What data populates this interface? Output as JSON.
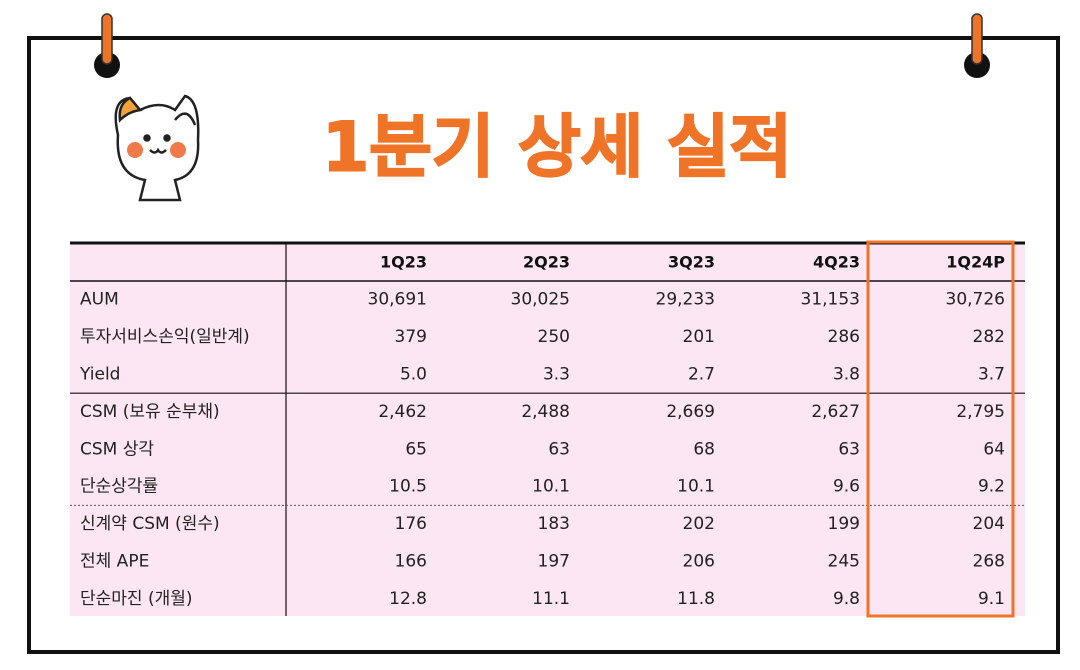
{
  "title": "1분기 상세 실적",
  "table": {
    "header": [
      "1Q23",
      "2Q23",
      "3Q23",
      "4Q23",
      "1Q24P"
    ],
    "rows": [
      [
        "AUM",
        "30,691",
        "30,025",
        "29,233",
        "31,153",
        "30,726"
      ],
      [
        "투자서비스손익(일반계)",
        "379",
        "250",
        "201",
        "286",
        "282"
      ],
      [
        "Yield",
        "5.0",
        "3.3",
        "2.7",
        "3.8",
        "3.7"
      ],
      [
        "CSM (보유 순부채)",
        "2,462",
        "2,488",
        "2,669",
        "2,627",
        "2,795"
      ],
      [
        "CSM 상각",
        "65",
        "63",
        "68",
        "63",
        "64"
      ],
      [
        "단순상각률",
        "10.5",
        "10.1",
        "10.1",
        "9.6",
        "9.2"
      ],
      [
        "신계약 CSM (원수)",
        "176",
        "183",
        "202",
        "199",
        "204"
      ],
      [
        "전체 APE",
        "166",
        "197",
        "206",
        "245",
        "268"
      ],
      [
        "단순마진 (개월)",
        "12.8",
        "11.1",
        "11.8",
        "9.8",
        "9.1"
      ]
    ]
  }
}
